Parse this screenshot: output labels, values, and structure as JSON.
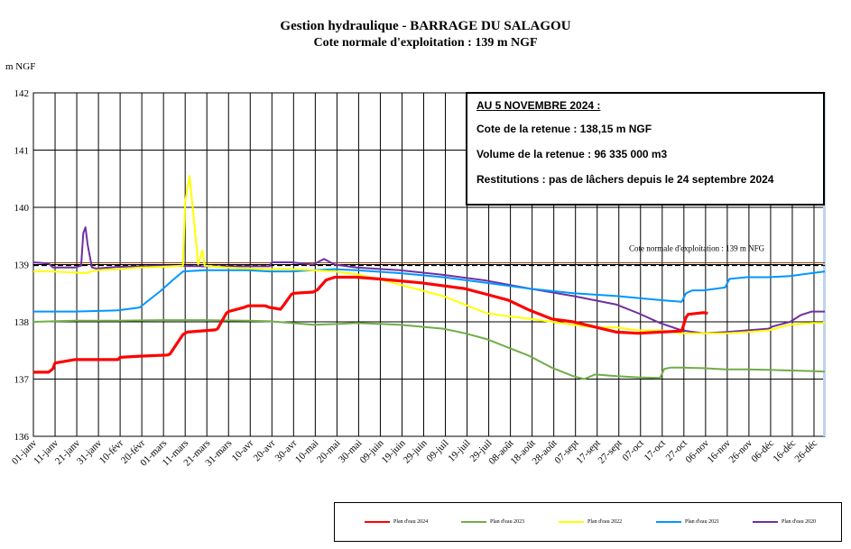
{
  "title": "Gestion hydraulique - BARRAGE DU SALAGOU",
  "subtitle": "Cote normale d'exploitation : 139 m NGF",
  "info_box": {
    "date_line": "AU 5 NOVEMBRE 2024 :",
    "cote_line": "Cote de la retenue : 138,15 m NGF",
    "volume_line": "Volume de la retenue : 96 335 000 m3",
    "restitutions_line": "Restitutions : pas de lâchers depuis le 24 septembre 2024"
  },
  "chart_data": {
    "type": "line",
    "ylabel": "m NGF",
    "ylim": [
      136,
      142
    ],
    "yticks": [
      136,
      137,
      138,
      139,
      140,
      141,
      142
    ],
    "xlim": [
      1,
      366
    ],
    "x_unit": "day of year",
    "xtick_labels": [
      "01-janv",
      "11-janv",
      "21-janv",
      "31-janv",
      "10-févr",
      "20-févr",
      "01-mars",
      "11-mars",
      "21-mars",
      "31-mars",
      "10-avr",
      "20-avr",
      "30-avr",
      "10-mai",
      "20-mai",
      "30-mai",
      "09-juin",
      "19-juin",
      "29-juin",
      "09-juil",
      "19-juil",
      "29-juil",
      "08-août",
      "18-août",
      "28-août",
      "07-sept",
      "17-sept",
      "27-sept",
      "07-oct",
      "17-oct",
      "27-oct",
      "06-nov",
      "16-nov",
      "26-nov",
      "06-déc",
      "16-déc",
      "26-déc"
    ],
    "xtick_days": [
      1,
      11,
      21,
      31,
      41,
      51,
      61,
      71,
      81,
      91,
      101,
      111,
      121,
      131,
      141,
      151,
      161,
      171,
      181,
      191,
      201,
      211,
      221,
      231,
      241,
      251,
      261,
      271,
      281,
      291,
      301,
      311,
      321,
      331,
      341,
      351,
      361
    ],
    "grid": true,
    "reference_line": {
      "y": 139,
      "label": "Cote normale d'exploitation : 139 m NFG"
    },
    "series": [
      {
        "name": "Plan d'eau 2024",
        "color": "#ff0000",
        "width": 3.2,
        "x": [
          1,
          8,
          10,
          11,
          20,
          30,
          40,
          41,
          50,
          63,
          64,
          70,
          72,
          85,
          86,
          90,
          91,
          98,
          100,
          108,
          110,
          115,
          116,
          120,
          121,
          130,
          132,
          136,
          140,
          150,
          160,
          180,
          200,
          210,
          220,
          230,
          240,
          250,
          270,
          280,
          290,
          300,
          302,
          303,
          310,
          312
        ],
        "y": [
          137.12,
          137.12,
          137.18,
          137.28,
          137.34,
          137.34,
          137.34,
          137.38,
          137.4,
          137.42,
          137.44,
          137.78,
          137.82,
          137.86,
          137.88,
          138.15,
          138.18,
          138.25,
          138.28,
          138.28,
          138.25,
          138.22,
          138.27,
          138.48,
          138.5,
          138.52,
          138.56,
          138.73,
          138.78,
          138.78,
          138.75,
          138.68,
          138.58,
          138.48,
          138.38,
          138.2,
          138.05,
          138.0,
          137.82,
          137.8,
          137.82,
          137.84,
          138.08,
          138.13,
          138.16,
          138.15
        ]
      },
      {
        "name": "Plan d'eau 2023",
        "color": "#70ad47",
        "width": 2,
        "x": [
          1,
          20,
          40,
          60,
          80,
          100,
          110,
          120,
          130,
          140,
          150,
          170,
          190,
          200,
          210,
          220,
          230,
          240,
          250,
          255,
          260,
          270,
          280,
          290,
          292,
          295,
          300,
          310,
          320,
          330,
          340,
          350,
          360,
          366
        ],
        "y": [
          138.0,
          138.02,
          138.02,
          138.03,
          138.03,
          138.02,
          138.01,
          137.98,
          137.95,
          137.96,
          137.98,
          137.95,
          137.88,
          137.8,
          137.7,
          137.55,
          137.4,
          137.2,
          137.05,
          137.0,
          137.08,
          137.05,
          137.03,
          137.02,
          137.18,
          137.2,
          137.2,
          137.19,
          137.17,
          137.17,
          137.16,
          137.15,
          137.14,
          137.13
        ]
      },
      {
        "name": "Plan d'eau 2022",
        "color": "#ffff00",
        "width": 2,
        "x": [
          1,
          10,
          20,
          25,
          30,
          40,
          50,
          60,
          70,
          71,
          73,
          75,
          77,
          79,
          80,
          90,
          100,
          110,
          120,
          130,
          140,
          150,
          160,
          170,
          180,
          190,
          200,
          210,
          220,
          230,
          240,
          250,
          260,
          270,
          280,
          290,
          300,
          310,
          320,
          330,
          340,
          350,
          360,
          366
        ],
        "y": [
          138.88,
          138.88,
          138.86,
          138.85,
          138.9,
          138.92,
          138.95,
          138.96,
          138.98,
          140.1,
          140.55,
          139.8,
          139.0,
          139.25,
          138.98,
          138.95,
          138.93,
          138.92,
          138.92,
          138.9,
          138.88,
          138.83,
          138.75,
          138.65,
          138.55,
          138.45,
          138.3,
          138.15,
          138.1,
          138.05,
          138.0,
          137.95,
          137.9,
          137.9,
          137.85,
          137.85,
          137.8,
          137.8,
          137.8,
          137.82,
          137.85,
          137.95,
          137.98,
          137.98
        ]
      },
      {
        "name": "Plan d'eau 2021",
        "color": "#0096ff",
        "width": 2,
        "x": [
          1,
          20,
          40,
          50,
          55,
          60,
          65,
          70,
          80,
          100,
          110,
          120,
          130,
          140,
          150,
          170,
          190,
          210,
          230,
          250,
          270,
          290,
          300,
          302,
          305,
          310,
          320,
          322,
          330,
          340,
          350,
          360,
          366
        ],
        "y": [
          138.18,
          138.18,
          138.2,
          138.25,
          138.4,
          138.55,
          138.72,
          138.88,
          138.9,
          138.9,
          138.88,
          138.88,
          138.9,
          138.92,
          138.9,
          138.85,
          138.78,
          138.68,
          138.58,
          138.5,
          138.45,
          138.38,
          138.35,
          138.5,
          138.55,
          138.55,
          138.6,
          138.75,
          138.78,
          138.78,
          138.8,
          138.85,
          138.88
        ]
      },
      {
        "name": "Plan d'eau 2020",
        "color": "#7030a0",
        "width": 2,
        "x": [
          1,
          8,
          10,
          20,
          23,
          24,
          25,
          26,
          28,
          30,
          40,
          60,
          80,
          100,
          110,
          111,
          120,
          125,
          130,
          135,
          140,
          150,
          170,
          190,
          210,
          230,
          250,
          270,
          280,
          290,
          300,
          310,
          320,
          330,
          340,
          342,
          345,
          350,
          355,
          360,
          366
        ],
        "y": [
          139.04,
          139.02,
          138.95,
          138.95,
          138.98,
          139.55,
          139.65,
          139.35,
          138.95,
          138.93,
          138.96,
          138.98,
          138.97,
          138.97,
          138.97,
          139.04,
          139.04,
          139.02,
          139.0,
          139.1,
          139.0,
          138.95,
          138.9,
          138.82,
          138.72,
          138.58,
          138.45,
          138.3,
          138.15,
          137.98,
          137.85,
          137.8,
          137.82,
          137.85,
          137.88,
          137.92,
          137.95,
          138.0,
          138.12,
          138.18,
          138.18
        ]
      }
    ]
  }
}
